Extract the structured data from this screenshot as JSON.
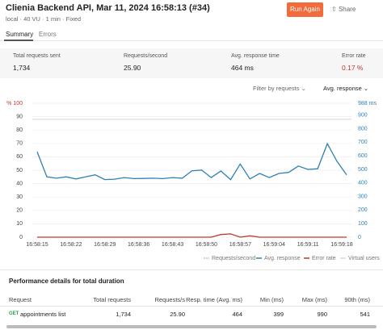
{
  "header": {
    "title": "Clienia Backend API, Mar 11, 2024 16:58:13 (#34)",
    "meta": [
      "local",
      "40 VU",
      "1 min",
      "Fixed"
    ],
    "run_button": "Run Again",
    "share": "Share"
  },
  "tabs": [
    "Summary",
    "Errors"
  ],
  "stats": [
    {
      "label": "Total requests sent",
      "value": "1,734"
    },
    {
      "label": "Requests/second",
      "value": "25.90"
    },
    {
      "label": "Avg. response time",
      "value": "464 ms"
    },
    {
      "label": "Error rate",
      "value": "0.17 %"
    }
  ],
  "filters": [
    "Filter by requests",
    "Avg. response"
  ],
  "chart_data": {
    "type": "line",
    "x": [
      "16:58:15",
      "16:58:17",
      "16:58:19",
      "16:58:21",
      "16:58:23",
      "16:58:25",
      "16:58:27",
      "16:58:29",
      "16:58:31",
      "16:58:33",
      "16:58:35",
      "16:58:37",
      "16:58:39",
      "16:58:41",
      "16:58:43",
      "16:58:45",
      "16:58:47",
      "16:58:49",
      "16:58:51",
      "16:58:53",
      "16:58:55",
      "16:58:57",
      "16:58:59",
      "16:59:01",
      "16:59:03",
      "16:59:05",
      "16:59:07",
      "16:59:09",
      "16:59:11",
      "16:59:13",
      "16:59:15",
      "16:59:17",
      "16:59:19"
    ],
    "xlim": [
      "16:58:14",
      "16:59:20"
    ],
    "xticks": [
      "16:58:15",
      "16:58:22",
      "16:58:29",
      "16:58:36",
      "16:58:43",
      "16:58:50",
      "16:58:57",
      "16:59:04",
      "16:59:11",
      "16:59:18"
    ],
    "ylim": [
      0,
      100
    ],
    "yticks": [
      0,
      10,
      20,
      30,
      40,
      50,
      60,
      70,
      80,
      90,
      {
        "value": 100,
        "label": "% 100"
      }
    ],
    "y2lim": [
      0,
      988
    ],
    "y2ticks": [
      0,
      100,
      200,
      300,
      400,
      500,
      600,
      700,
      800,
      900,
      {
        "value": 988,
        "label": "988 ms"
      }
    ],
    "grid": true,
    "series": [
      {
        "name": "Requests/second",
        "color": "#f2b28c"
      },
      {
        "name": "Avg. response",
        "color": "#2f80b5",
        "axis": "y2",
        "values": [
          630,
          445,
          435,
          445,
          430,
          445,
          460,
          425,
          428,
          440,
          432,
          433,
          435,
          432,
          440,
          435,
          490,
          495,
          440,
          488,
          425,
          540,
          430,
          470,
          440,
          470,
          478,
          525,
          500,
          505,
          690,
          560,
          460
        ]
      },
      {
        "name": "Error rate",
        "color": "#c0392b",
        "values": [
          0,
          0,
          0,
          0,
          0,
          0,
          0,
          0,
          0,
          0,
          0,
          0,
          0,
          0,
          0,
          0,
          0,
          0,
          0,
          2,
          2.5,
          0,
          1,
          0,
          0,
          0,
          0,
          0,
          0,
          0,
          0,
          0,
          0
        ]
      },
      {
        "name": "Virtual users",
        "color": "#d8d8d8",
        "x": [
          "16:58:14",
          "16:59:20"
        ],
        "values": [
          88,
          88
        ]
      }
    ]
  },
  "table": {
    "title": "Performance details for total duration",
    "columns": [
      "Request",
      "Total requests",
      "Requests/s",
      "Resp. time (Avg. ms)",
      "Min (ms)",
      "Max (ms)",
      "90th (ms)"
    ],
    "rows": [
      {
        "method": "GET",
        "name": "appointments list",
        "cells": [
          "1,734",
          "25.90",
          "464",
          "399",
          "990",
          "541"
        ]
      }
    ]
  }
}
